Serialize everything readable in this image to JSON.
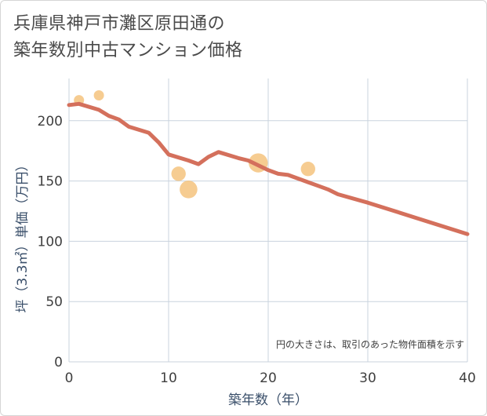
{
  "title_lines": [
    "兵庫県神戸市灘区原田通の",
    "築年数別中古マンション価格"
  ],
  "colors": {
    "line": "#d4705c",
    "bubble": "#f4c37e",
    "grid": "#c9d3de",
    "plot_bg": "#ffffff",
    "axis_label": "#3a4f6a"
  },
  "chart_data": {
    "type": "scatter",
    "title": "兵庫県神戸市灘区原田通の築年数別中古マンション価格",
    "xlabel": "築年数（年）",
    "ylabel": "坪（3.3㎡）単価（万円）",
    "xlim": [
      0,
      40
    ],
    "ylim": [
      0,
      235
    ],
    "xticks": [
      0,
      10,
      20,
      30,
      40
    ],
    "yticks": [
      0,
      50,
      100,
      150,
      200
    ],
    "grid": true,
    "note": "円の大きさは、取引のあった物件面積を示す",
    "bubbles": [
      {
        "x": 1,
        "y": 217,
        "size": 1
      },
      {
        "x": 3,
        "y": 221,
        "size": 1
      },
      {
        "x": 11,
        "y": 156,
        "size": 2
      },
      {
        "x": 12,
        "y": 143,
        "size": 3
      },
      {
        "x": 19,
        "y": 165,
        "size": 3.5
      },
      {
        "x": 24,
        "y": 160,
        "size": 2
      }
    ],
    "trend": {
      "x": [
        0,
        1,
        3,
        4,
        5,
        6,
        8,
        9,
        10,
        12,
        13,
        14,
        15,
        17,
        18,
        19,
        20,
        21,
        22,
        23,
        24,
        25,
        26,
        27,
        30,
        35,
        40
      ],
      "y": [
        213,
        214,
        209,
        204,
        201,
        195,
        190,
        182,
        172,
        167,
        164,
        170,
        174,
        169,
        167,
        163,
        159,
        156,
        155,
        152,
        149,
        146,
        143,
        139,
        132,
        119,
        106
      ]
    }
  }
}
